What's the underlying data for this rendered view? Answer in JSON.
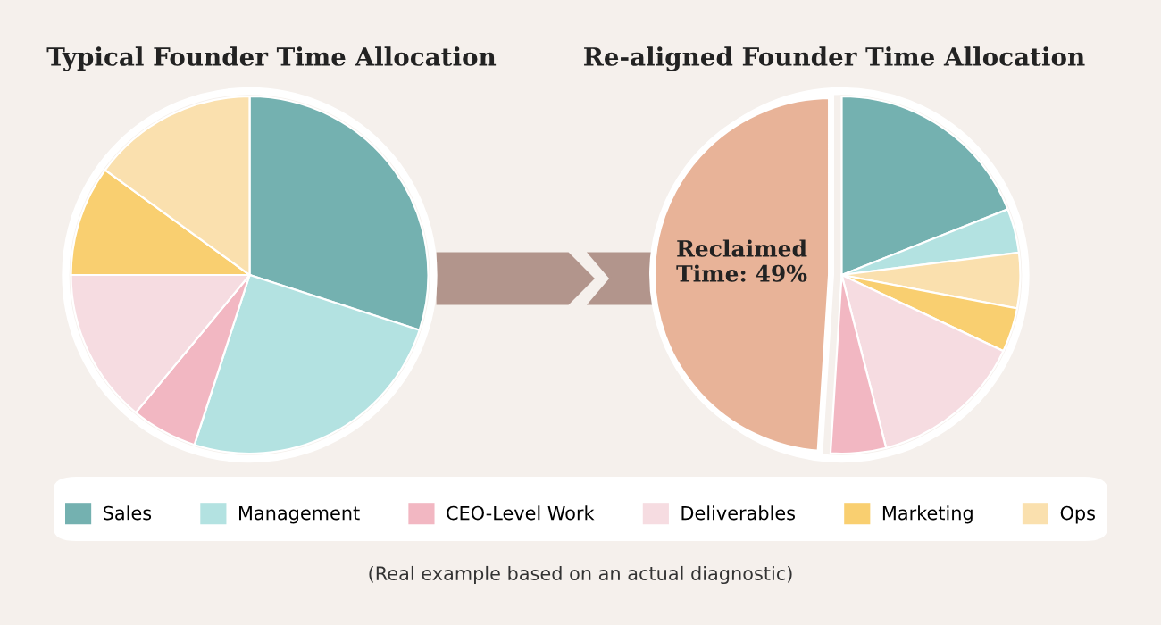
{
  "chart_data": [
    {
      "type": "pie",
      "title": "Typical Founder Time Allocation",
      "categories": [
        "Sales",
        "Management",
        "CEO-Level Work",
        "Deliverables",
        "Marketing",
        "Ops"
      ],
      "values": [
        30,
        25,
        6,
        14,
        10,
        15
      ],
      "colors": [
        "#74b1b0",
        "#b3e2e1",
        "#f2b7c2",
        "#f6dce1",
        "#f9cf70",
        "#fae0ae"
      ],
      "legend": "bottom",
      "annotations": [
        "(Real example based on an actual diagnostic)"
      ]
    },
    {
      "type": "pie",
      "title": "Re-aligned Founder Time Allocation",
      "categories": [
        null,
        null,
        null,
        null,
        null,
        null,
        null
      ],
      "values": [
        19,
        4,
        5,
        4,
        14,
        5,
        49
      ],
      "colors": [
        "#74b1b0",
        "#b3e2e1",
        "#fae0ae",
        "#f9cf70",
        "#f6dce1",
        "#f2b7c2",
        "#e8b398"
      ],
      "value_labels": [
        null,
        null,
        null,
        null,
        null,
        null,
        "Reclaimed Time: 49%"
      ]
    }
  ]
}
